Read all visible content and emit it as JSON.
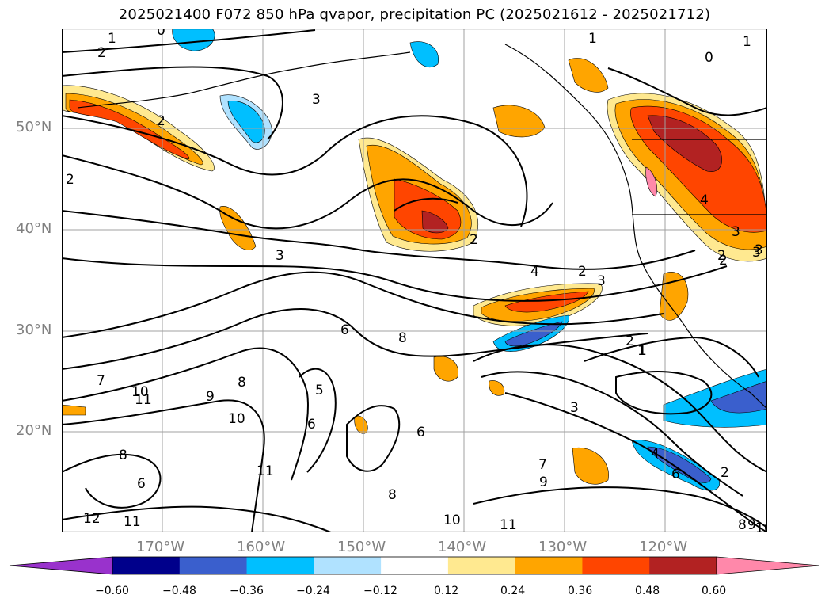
{
  "title": "2025021400 F072 850 hPa qvapor, precipitation PC (2025021612 - 2025021712)",
  "lat_labels": [
    "50°N",
    "40°N",
    "30°N",
    "20°N"
  ],
  "lon_labels": [
    "170°W",
    "160°W",
    "150°W",
    "140°W",
    "130°W",
    "120°W"
  ],
  "colorbar": {
    "colors": [
      "#9932cc",
      "#00008b",
      "#3a5fcd",
      "#00bfff",
      "#b0e2ff",
      "#ffffff",
      "#ffe990",
      "#ffa500",
      "#ff4500",
      "#b22222",
      "#ff88aa"
    ],
    "tick_labels": [
      "−0.60",
      "−0.48",
      "−0.36",
      "−0.24",
      "−0.12",
      "0.12",
      "0.24",
      "0.36",
      "0.48",
      "0.60"
    ]
  },
  "contour_labels": [
    "0",
    "1",
    "2",
    "1",
    "2",
    "2",
    "3",
    "2",
    "3",
    "2",
    "3",
    "4",
    "4",
    "3",
    "3",
    "2",
    "3",
    "2",
    "6",
    "8",
    "5",
    "6",
    "6",
    "1",
    "7",
    "10",
    "11",
    "9",
    "8",
    "10",
    "8",
    "11",
    "6",
    "8",
    "7",
    "9",
    "10",
    "11",
    "12",
    "11",
    "4",
    "6",
    "2",
    "8",
    "9",
    "10",
    "3",
    "2",
    "1",
    "0",
    "1"
  ]
}
